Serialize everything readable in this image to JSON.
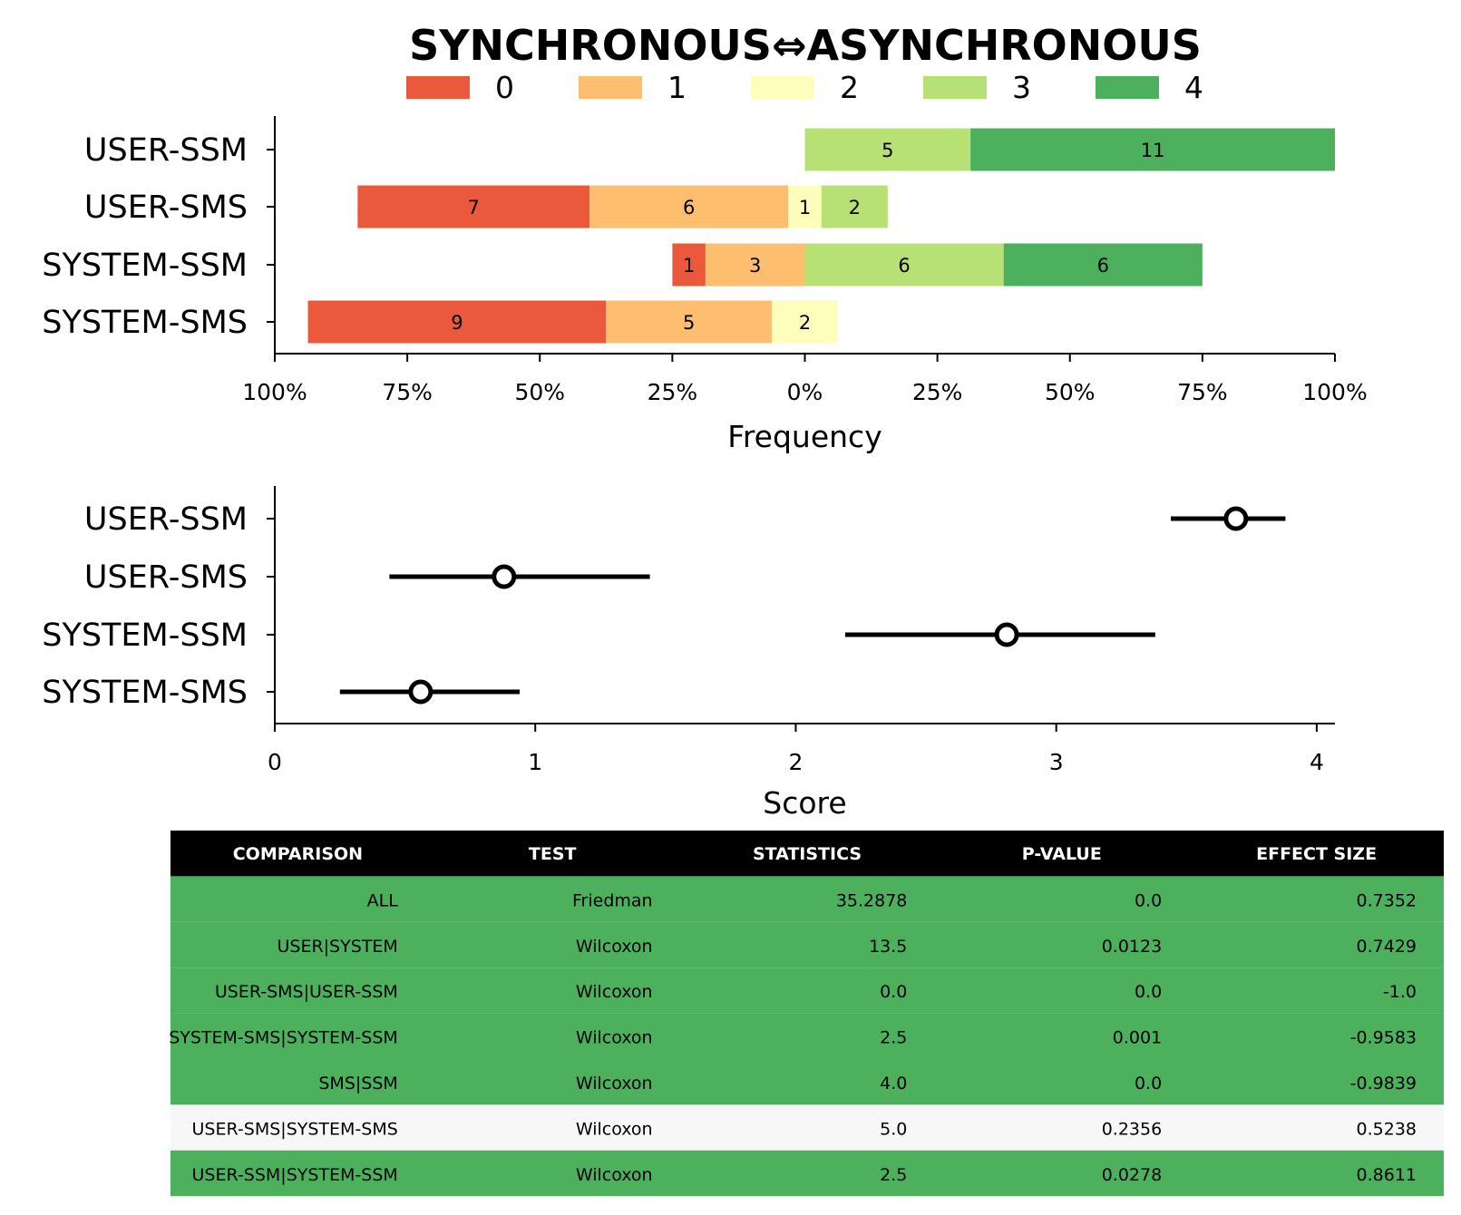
{
  "chart_data": [
    {
      "type": "bar",
      "subtype": "diverging-stacked-horizontal",
      "title": "SYNCHRONOUS⇔ASYNCHRONOUS",
      "xlabel": "Frequency",
      "ylabel": "",
      "categories": [
        "USER-SSM",
        "USER-SMS",
        "SYSTEM-SSM",
        "SYSTEM-SMS"
      ],
      "legend": {
        "placement": "top",
        "entries": [
          {
            "label": "0",
            "color": "#eb593c"
          },
          {
            "label": "1",
            "color": "#fdbf6f"
          },
          {
            "label": "2",
            "color": "#fefebc"
          },
          {
            "label": "3",
            "color": "#b7e075"
          },
          {
            "label": "4",
            "color": "#4cb05d"
          }
        ]
      },
      "series": [
        {
          "name": "0",
          "values": [
            0,
            7,
            1,
            9
          ]
        },
        {
          "name": "1",
          "values": [
            0,
            6,
            3,
            5
          ]
        },
        {
          "name": "2",
          "values": [
            0,
            1,
            0,
            2
          ]
        },
        {
          "name": "3",
          "values": [
            5,
            2,
            6,
            0
          ]
        },
        {
          "name": "4",
          "values": [
            11,
            0,
            6,
            0
          ]
        }
      ],
      "total_per_category": 16,
      "xlim": [
        -100,
        100
      ],
      "xticks": [
        {
          "value": -100,
          "label": "100%"
        },
        {
          "value": -75,
          "label": "75%"
        },
        {
          "value": -50,
          "label": "50%"
        },
        {
          "value": -25,
          "label": "25%"
        },
        {
          "value": 0,
          "label": "0%"
        },
        {
          "value": 25,
          "label": "25%"
        },
        {
          "value": 50,
          "label": "50%"
        },
        {
          "value": 75,
          "label": "75%"
        },
        {
          "value": 100,
          "label": "100%"
        }
      ]
    },
    {
      "type": "scatter",
      "subtype": "point-with-error-interval",
      "title": "",
      "xlabel": "Score",
      "ylabel": "",
      "categories": [
        "USER-SSM",
        "USER-SMS",
        "SYSTEM-SSM",
        "SYSTEM-SMS"
      ],
      "points": [
        {
          "category": "USER-SSM",
          "mean": 3.69,
          "low": 3.44,
          "high": 3.88
        },
        {
          "category": "USER-SMS",
          "mean": 0.88,
          "low": 0.44,
          "high": 1.44
        },
        {
          "category": "SYSTEM-SSM",
          "mean": 2.81,
          "low": 2.19,
          "high": 3.38
        },
        {
          "category": "SYSTEM-SMS",
          "mean": 0.56,
          "low": 0.25,
          "high": 0.94
        }
      ],
      "xlim": [
        0,
        4.07
      ],
      "xticks": [
        "0",
        "1",
        "2",
        "3",
        "4"
      ]
    },
    {
      "type": "table",
      "columns": [
        "COMPARISON",
        "TEST",
        "STATISTICS",
        "P-VALUE",
        "EFFECT SIZE"
      ],
      "header_color": "#000000",
      "significant_color": "#4cb05d",
      "nonsignificant_color": "#f7f7f7",
      "rows": [
        {
          "cells": [
            "ALL",
            "Friedman",
            "35.2878",
            "0.0",
            "0.7352"
          ],
          "significant": true
        },
        {
          "cells": [
            "USER|SYSTEM",
            "Wilcoxon",
            "13.5",
            "0.0123",
            "0.7429"
          ],
          "significant": true
        },
        {
          "cells": [
            "USER-SMS|USER-SSM",
            "Wilcoxon",
            "0.0",
            "0.0",
            "-1.0"
          ],
          "significant": true
        },
        {
          "cells": [
            "SYSTEM-SMS|SYSTEM-SSM",
            "Wilcoxon",
            "2.5",
            "0.001",
            "-0.9583"
          ],
          "significant": true
        },
        {
          "cells": [
            "SMS|SSM",
            "Wilcoxon",
            "4.0",
            "0.0",
            "-0.9839"
          ],
          "significant": true
        },
        {
          "cells": [
            "USER-SMS|SYSTEM-SMS",
            "Wilcoxon",
            "5.0",
            "0.2356",
            "0.5238"
          ],
          "significant": false
        },
        {
          "cells": [
            "USER-SSM|SYSTEM-SSM",
            "Wilcoxon",
            "2.5",
            "0.0278",
            "0.8611"
          ],
          "significant": true
        }
      ]
    }
  ]
}
